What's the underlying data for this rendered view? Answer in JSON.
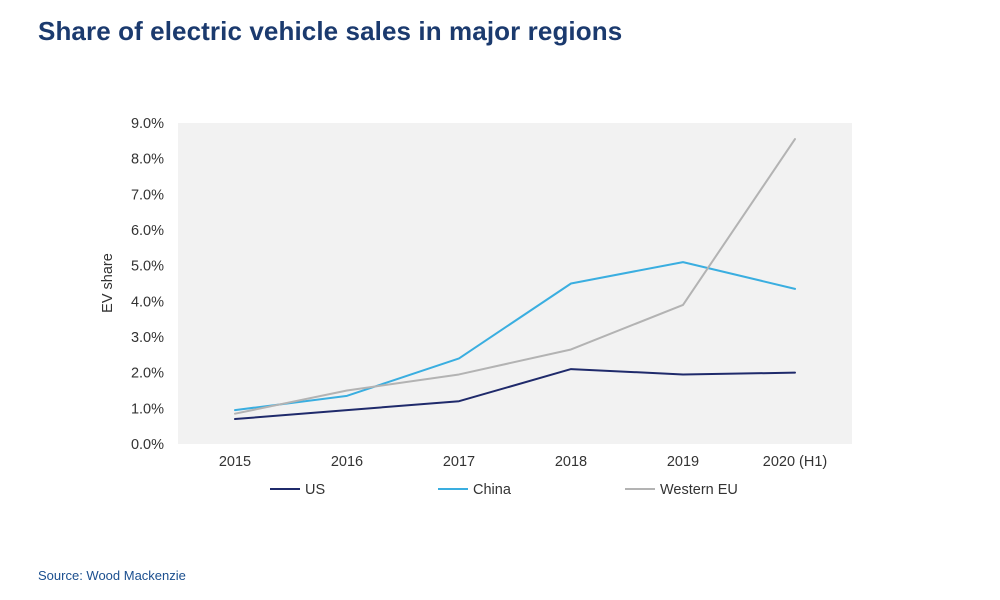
{
  "title": "Share of electric vehicle sales in major regions",
  "source": "Source: Wood Mackenzie",
  "chart_data": {
    "type": "line",
    "title": "Share of electric vehicle sales in major regions",
    "xlabel": "",
    "ylabel": "EV share",
    "categories": [
      "2015",
      "2016",
      "2017",
      "2018",
      "2019",
      "2020 (H1)"
    ],
    "ylim": [
      0,
      9
    ],
    "yticks": [
      "0.0%",
      "1.0%",
      "2.0%",
      "3.0%",
      "4.0%",
      "5.0%",
      "6.0%",
      "7.0%",
      "8.0%",
      "9.0%"
    ],
    "grid": false,
    "legend": "bottom",
    "series": [
      {
        "name": "US",
        "color": "#1f2a6b",
        "values": [
          0.7,
          0.95,
          1.2,
          2.1,
          1.95,
          2.0
        ]
      },
      {
        "name": "China",
        "color": "#3aaee0",
        "values": [
          0.95,
          1.35,
          2.4,
          4.5,
          5.1,
          4.35
        ]
      },
      {
        "name": "Western EU",
        "color": "#b3b3b3",
        "values": [
          0.85,
          1.5,
          1.95,
          2.65,
          3.9,
          8.55
        ]
      }
    ]
  }
}
